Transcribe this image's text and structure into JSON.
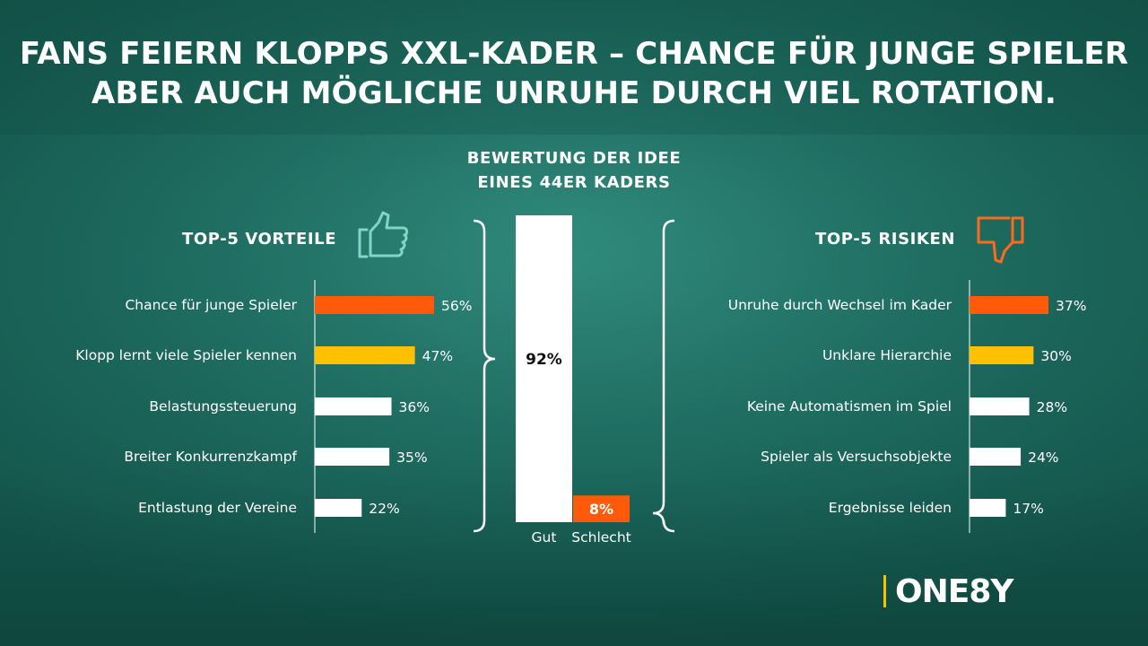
{
  "headline": {
    "line1": "FANS FEIERN KLOPPS XXL-KADER – CHANCE FÜR JUNGE SPIELER",
    "line2": "ABER AUCH MÖGLICHE UNRUHE DURCH VIEL ROTATION."
  },
  "brand": "ONE8Y",
  "icons": {
    "left": "thumbs-up-icon",
    "right": "thumbs-down-icon"
  },
  "colors": {
    "orange": "#ff5a0a",
    "yellow": "#ffc000",
    "white": "#ffffff",
    "background": "#1f6e63"
  },
  "chart_data": [
    {
      "type": "bar",
      "orientation": "horizontal",
      "title": "TOP-5 VORTEILE",
      "categories": [
        "Chance für junge Spieler",
        "Klopp lernt viele Spieler kennen",
        "Belastungssteuerung",
        "Breiter Konkurrenzkampf",
        "Entlastung der Vereine"
      ],
      "values": [
        56,
        47,
        36,
        35,
        22
      ],
      "value_labels": [
        "56%",
        "47%",
        "36%",
        "35%",
        "22%"
      ],
      "colors": [
        "#ff5a0a",
        "#ffc000",
        "#ffffff",
        "#ffffff",
        "#ffffff"
      ],
      "xlim": [
        0,
        100
      ]
    },
    {
      "type": "bar",
      "orientation": "vertical",
      "title_lines": [
        "BEWERTUNG DER IDEE",
        "EINES 44ER KADERS"
      ],
      "categories": [
        "Gut",
        "Schlecht"
      ],
      "values": [
        92,
        8
      ],
      "value_labels": [
        "92%",
        "8%"
      ],
      "colors": [
        "#ffffff",
        "#ff5a0a"
      ],
      "ylim": [
        0,
        100
      ]
    },
    {
      "type": "bar",
      "orientation": "horizontal",
      "title": "TOP-5 RISIKEN",
      "categories": [
        "Unruhe durch Wechsel im Kader",
        "Unklare Hierarchie",
        "Keine Automatismen im Spiel",
        "Spieler als Versuchsobjekte",
        "Ergebnisse leiden"
      ],
      "values": [
        37,
        30,
        28,
        24,
        17
      ],
      "value_labels": [
        "37%",
        "30%",
        "28%",
        "24%",
        "17%"
      ],
      "colors": [
        "#ff5a0a",
        "#ffc000",
        "#ffffff",
        "#ffffff",
        "#ffffff"
      ],
      "xlim": [
        0,
        100
      ]
    }
  ]
}
